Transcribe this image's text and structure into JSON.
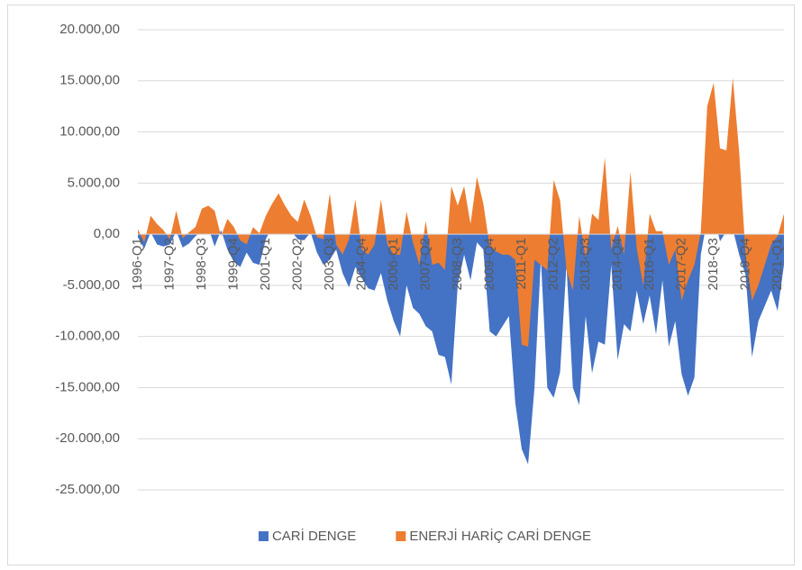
{
  "chart_data": {
    "type": "area",
    "categories": [
      "1996-Q1",
      null,
      null,
      null,
      null,
      "1997-Q2",
      null,
      null,
      null,
      null,
      "1998-Q3",
      null,
      null,
      null,
      null,
      "1999-Q4",
      null,
      null,
      null,
      null,
      "2001-Q1",
      null,
      null,
      null,
      null,
      "2002-Q2",
      null,
      null,
      null,
      null,
      "2003-Q3",
      null,
      null,
      null,
      null,
      "2004-Q4",
      null,
      null,
      null,
      null,
      "2006-Q1",
      null,
      null,
      null,
      null,
      "2007-Q2",
      null,
      null,
      null,
      null,
      "2008-Q3",
      null,
      null,
      null,
      null,
      "2009-Q4",
      null,
      null,
      null,
      null,
      "2011-Q1",
      null,
      null,
      null,
      null,
      "2012-Q2",
      null,
      null,
      null,
      null,
      "2013-Q3",
      null,
      null,
      null,
      null,
      "2014-Q4",
      null,
      null,
      null,
      null,
      "2016-Q1",
      null,
      null,
      null,
      null,
      "2017-Q2",
      null,
      null,
      null,
      null,
      "2018-Q3",
      null,
      null,
      null,
      null,
      "2019-Q4",
      null,
      null,
      null,
      null,
      "2021-Q1",
      null
    ],
    "series": [
      {
        "name": "CARİ DENGE",
        "color": "#4472c4",
        "values": [
          -300,
          -1400,
          200,
          -1000,
          -1200,
          -1000,
          300,
          -1300,
          -900,
          -200,
          300,
          700,
          -1200,
          400,
          -1500,
          -2700,
          -3200,
          -1800,
          -2800,
          -3000,
          -500,
          800,
          1500,
          900,
          300,
          -500,
          -600,
          200,
          -1800,
          -3000,
          -2500,
          -1500,
          -3800,
          -5200,
          -3200,
          -4300,
          -5300,
          -5500,
          -3800,
          -6500,
          -8500,
          -10000,
          -5000,
          -7200,
          -7800,
          -9000,
          -9500,
          -11800,
          -12000,
          -14700,
          -5000,
          -2000,
          -4500,
          -800,
          -1500,
          -9500,
          -10000,
          -9000,
          -8000,
          -16500,
          -21000,
          -22500,
          -15000,
          -2400,
          -15000,
          -16000,
          -13500,
          -3000,
          -15000,
          -16700,
          -8000,
          -13600,
          -10500,
          -10800,
          -3000,
          -12300,
          -8800,
          -9500,
          -5500,
          -8800,
          -6000,
          -9800,
          -4500,
          -11000,
          -8500,
          -13700,
          -15800,
          -14000,
          -2000,
          1500,
          2000,
          -700,
          300,
          500,
          -2000,
          -4000,
          -12000,
          -8500,
          -7000,
          -5500,
          -7500,
          -3000
        ]
      },
      {
        "name": "ENERJİ HARİÇ CARİ DENGE",
        "color": "#ed7d31",
        "values": [
          500,
          -800,
          1800,
          1000,
          400,
          -500,
          2300,
          -400,
          200,
          700,
          2500,
          2800,
          2300,
          -200,
          1500,
          700,
          -600,
          -1000,
          700,
          100,
          1800,
          3000,
          4000,
          2800,
          1800,
          1200,
          3400,
          1800,
          -300,
          -500,
          4000,
          -1000,
          -2000,
          -500,
          3400,
          -1500,
          -2000,
          -1000,
          3400,
          -1000,
          -2000,
          -2000,
          2200,
          -800,
          -3000,
          1300,
          -3000,
          -2800,
          -3500,
          4700,
          2800,
          4700,
          1000,
          5600,
          3000,
          -1200,
          -1700,
          -2000,
          -2000,
          -2500,
          -10800,
          -11000,
          -2500,
          -3000,
          -3500,
          5300,
          3300,
          -3500,
          -5500,
          1800,
          -2500,
          2000,
          1400,
          7500,
          -1500,
          800,
          -2000,
          6100,
          -1500,
          -5000,
          2000,
          300,
          300,
          -3000,
          -1500,
          -6500,
          -4500,
          -3000,
          200,
          12500,
          14800,
          8400,
          8200,
          15300,
          8000,
          -2000,
          -6500,
          -5000,
          -3000,
          -1000,
          -200,
          2000
        ]
      }
    ],
    "ylim": [
      -25000,
      20000
    ],
    "yticks": [
      {
        "value": -25000,
        "label": "-25.000,00"
      },
      {
        "value": -20000,
        "label": "-20.000,00"
      },
      {
        "value": -15000,
        "label": "-15.000,00"
      },
      {
        "value": -10000,
        "label": "-10.000,00"
      },
      {
        "value": -5000,
        "label": "-5.000,00"
      },
      {
        "value": 0,
        "label": "0,00"
      },
      {
        "value": 5000,
        "label": "5.000,00"
      },
      {
        "value": 10000,
        "label": "10.000,00"
      },
      {
        "value": 15000,
        "label": "15.000,00"
      },
      {
        "value": 20000,
        "label": "20.000,00"
      }
    ],
    "grid": true,
    "legend": "bottom"
  }
}
